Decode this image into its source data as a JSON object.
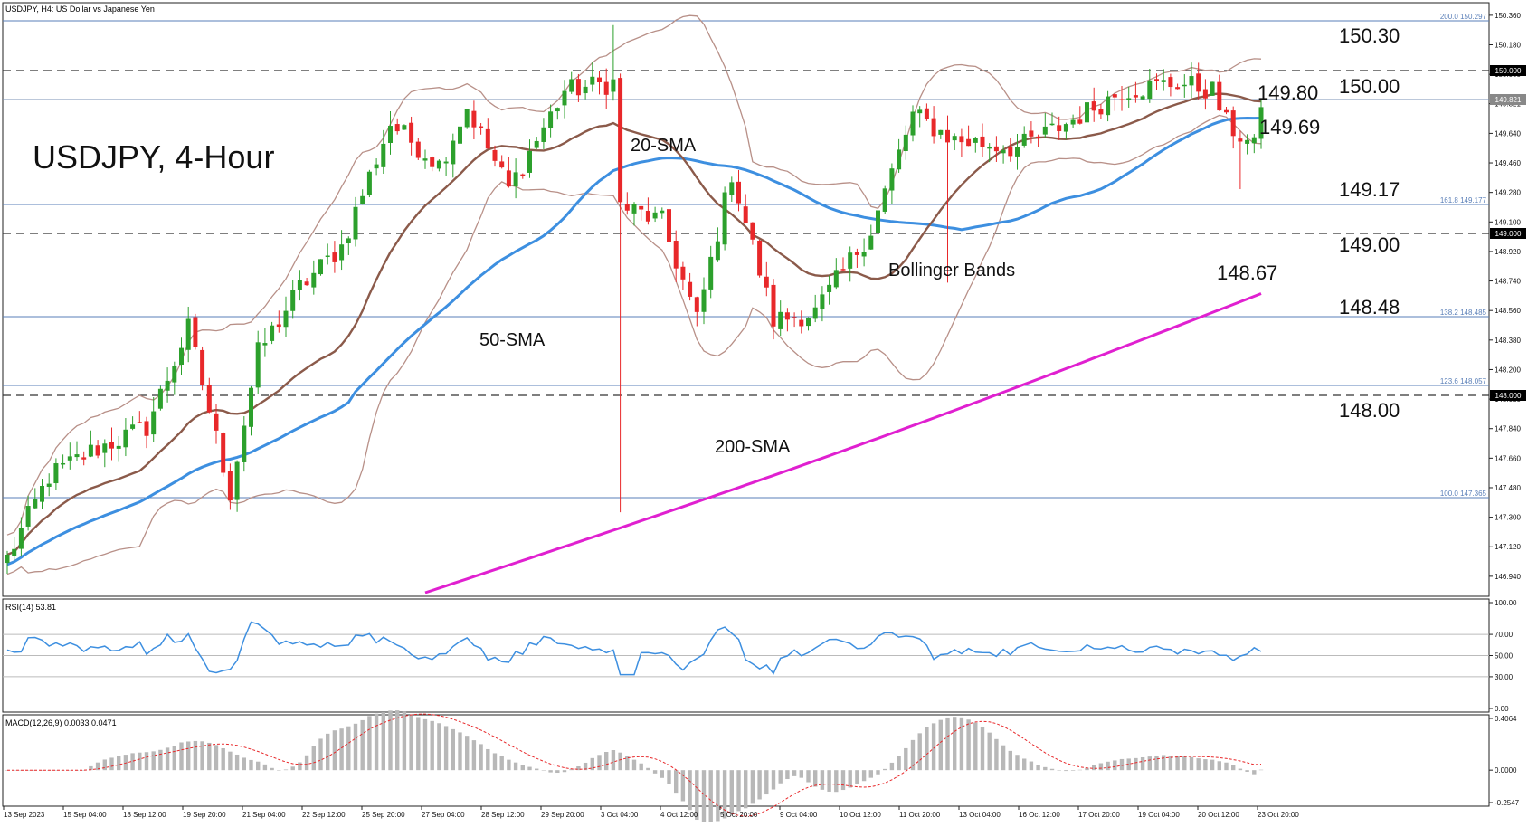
{
  "header": {
    "symbol_line": "USDJPY, H4:  US Dollar vs Japanese Yen"
  },
  "annotations": {
    "title": "USDJPY, 4-Hour",
    "sma20_label": "20-SMA",
    "sma50_label": "50-SMA",
    "sma200_label": "200-SMA",
    "bb_label": "Bollinger Bands"
  },
  "levels": {
    "l15030": "150.30",
    "l15000": "150.00",
    "l14980": "149.80",
    "l14969": "149.69",
    "l14917": "149.17",
    "l14900": "149.00",
    "l14867": "148.67",
    "l14848": "148.48",
    "l14800": "148.00"
  },
  "fib": {
    "f200": "200.0  150.297",
    "f1618": "161.8  149.177",
    "f1382": "138.2  148.485",
    "f1236": "123.6  148.057",
    "f100": "100.0  147.365"
  },
  "axis_tags": {
    "t15000": "150.000",
    "t14982": "149.821",
    "t14900": "149.000",
    "t14800": "148.000"
  },
  "rsi": {
    "label": "RSI(14) 53.81"
  },
  "macd": {
    "label": "MACD(12,26,9) 0.0033 0.0471"
  },
  "chart_data": [
    {
      "type": "candlestick",
      "symbol": "USDJPY",
      "timeframe": "H4",
      "ylim": [
        146.84,
        150.42
      ],
      "yticks": [
        "150.360",
        "150.180",
        "150.000",
        "149.821",
        "149.640",
        "149.460",
        "149.280",
        "149.100",
        "148.920",
        "148.740",
        "148.560",
        "148.380",
        "148.200",
        "148.020",
        "147.840",
        "147.660",
        "147.480",
        "147.300",
        "147.120",
        "146.940"
      ],
      "xticks": [
        "13 Sep 2023",
        "15 Sep 04:00",
        "18 Sep 12:00",
        "19 Sep 20:00",
        "21 Sep 04:00",
        "22 Sep 12:00",
        "25 Sep 20:00",
        "27 Sep 04:00",
        "28 Sep 12:00",
        "29 Sep 20:00",
        "3 Oct 04:00",
        "4 Oct 12:00",
        "5 Oct 20:00",
        "9 Oct 04:00",
        "10 Oct 12:00",
        "11 Oct 20:00",
        "13 Oct 04:00",
        "16 Oct 12:00",
        "17 Oct 20:00",
        "19 Oct 04:00",
        "20 Oct 12:00",
        "23 Oct 20:00"
      ],
      "key_points": [
        {
          "t": 0,
          "v": 147.05
        },
        {
          "t": 6,
          "v": 147.55
        },
        {
          "t": 12,
          "v": 147.7
        },
        {
          "t": 20,
          "v": 147.85
        },
        {
          "t": 26,
          "v": 148.45
        },
        {
          "t": 32,
          "v": 147.45
        },
        {
          "t": 36,
          "v": 148.3
        },
        {
          "t": 42,
          "v": 148.7
        },
        {
          "t": 48,
          "v": 148.95
        },
        {
          "t": 55,
          "v": 149.7
        },
        {
          "t": 62,
          "v": 149.45
        },
        {
          "t": 66,
          "v": 149.8
        },
        {
          "t": 72,
          "v": 149.3
        },
        {
          "t": 80,
          "v": 149.9
        },
        {
          "t": 87,
          "v": 149.95
        },
        {
          "t": 88,
          "v": 149.2
        },
        {
          "t": 94,
          "v": 149.1
        },
        {
          "t": 99,
          "v": 148.5
        },
        {
          "t": 104,
          "v": 149.4
        },
        {
          "t": 110,
          "v": 148.5
        },
        {
          "t": 116,
          "v": 148.55
        },
        {
          "t": 124,
          "v": 149.05
        },
        {
          "t": 130,
          "v": 149.75
        },
        {
          "t": 136,
          "v": 149.6
        },
        {
          "t": 145,
          "v": 149.55
        },
        {
          "t": 152,
          "v": 149.7
        },
        {
          "t": 160,
          "v": 149.9
        },
        {
          "t": 168,
          "v": 149.95
        },
        {
          "t": 173,
          "v": 149.9
        },
        {
          "t": 175,
          "v": 149.7
        },
        {
          "t": 179,
          "v": 149.55
        },
        {
          "t": 180,
          "v": 149.8
        }
      ],
      "indicators": {
        "sma20": {
          "color": "#8b5a4a"
        },
        "sma50": {
          "color": "#3d8fe0"
        },
        "sma200": {
          "color": "#e020d0"
        },
        "bollinger": {
          "color": "#b89088"
        }
      },
      "last_close": 149.8
    },
    {
      "type": "line",
      "name": "RSI(14)",
      "ylim": [
        0,
        100
      ],
      "yticks": [
        "100.00",
        "70.00",
        "50.00",
        "30.00",
        "0.00"
      ],
      "levels": [
        70,
        50,
        30
      ],
      "last": 53.81
    },
    {
      "type": "bar",
      "name": "MACD(12,26,9)",
      "ylim": [
        -0.2547,
        0.4064
      ],
      "yticks": [
        "0.4064",
        "0.0000",
        "-0.2547"
      ],
      "macd": 0.0033,
      "signal": 0.0471
    }
  ]
}
